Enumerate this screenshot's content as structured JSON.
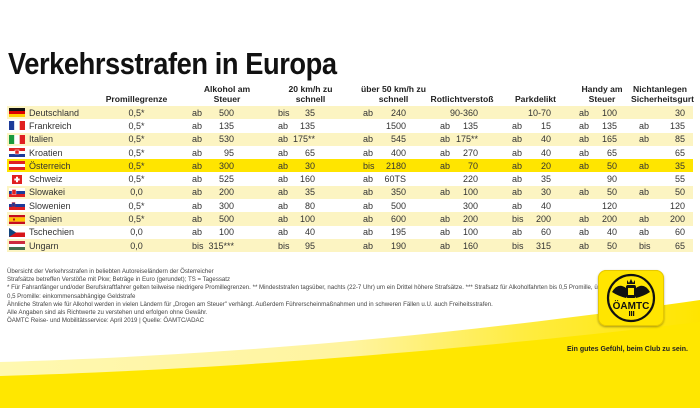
{
  "title": "Verkehrsstrafen in Europa",
  "table": {
    "headers": [
      "",
      "Promillegrenze",
      "Alkohol am Steuer",
      "20 km/h zu schnell",
      "über 50 km/h zu schnell",
      "Rotlichtverstoß",
      "Parkdelikt",
      "Handy am Steuer",
      "Nichtanlegen Sicherheitsgurt"
    ],
    "rows": [
      {
        "country": "Deutschland",
        "flag": "flag-germany",
        "promille": "0,5*",
        "alkohol": {
          "pre": "ab",
          "val": "500"
        },
        "kmh20": {
          "pre": "bis",
          "val": "35"
        },
        "kmh50": {
          "pre": "ab",
          "val": "240"
        },
        "rotlicht": {
          "pre": "",
          "val": "90-360"
        },
        "park": {
          "pre": "",
          "val": "10-70"
        },
        "handy": {
          "pre": "ab",
          "val": "100"
        },
        "gurt": {
          "pre": "",
          "val": "30"
        }
      },
      {
        "country": "Frankreich",
        "flag": "flag-france",
        "promille": "0,5*",
        "alkohol": {
          "pre": "ab",
          "val": "135"
        },
        "kmh20": {
          "pre": "ab",
          "val": "135"
        },
        "kmh50": {
          "pre": "",
          "val": "1500"
        },
        "rotlicht": {
          "pre": "ab",
          "val": "135"
        },
        "park": {
          "pre": "ab",
          "val": "15"
        },
        "handy": {
          "pre": "ab",
          "val": "135"
        },
        "gurt": {
          "pre": "ab",
          "val": "135"
        }
      },
      {
        "country": "Italien",
        "flag": "flag-italy",
        "promille": "0,5*",
        "alkohol": {
          "pre": "ab",
          "val": "530"
        },
        "kmh20": {
          "pre": "ab",
          "val": "175**"
        },
        "kmh50": {
          "pre": "ab",
          "val": "545"
        },
        "rotlicht": {
          "pre": "ab",
          "val": "175**"
        },
        "park": {
          "pre": "ab",
          "val": "40"
        },
        "handy": {
          "pre": "ab",
          "val": "165"
        },
        "gurt": {
          "pre": "ab",
          "val": "85"
        }
      },
      {
        "country": "Kroatien",
        "flag": "flag-croatia",
        "promille": "0,5*",
        "alkohol": {
          "pre": "ab",
          "val": "95"
        },
        "kmh20": {
          "pre": "ab",
          "val": "65"
        },
        "kmh50": {
          "pre": "ab",
          "val": "400"
        },
        "rotlicht": {
          "pre": "ab",
          "val": "270"
        },
        "park": {
          "pre": "ab",
          "val": "40"
        },
        "handy": {
          "pre": "ab",
          "val": "65"
        },
        "gurt": {
          "pre": "",
          "val": "65"
        }
      },
      {
        "country": "Österreich",
        "flag": "flag-austria",
        "promille": "0,5*",
        "alkohol": {
          "pre": "ab",
          "val": "300"
        },
        "kmh20": {
          "pre": "ab",
          "val": "30"
        },
        "kmh50": {
          "pre": "bis",
          "val": "2180"
        },
        "rotlicht": {
          "pre": "ab",
          "val": "70"
        },
        "park": {
          "pre": "ab",
          "val": "20"
        },
        "handy": {
          "pre": "ab",
          "val": "50"
        },
        "gurt": {
          "pre": "ab",
          "val": "35"
        },
        "highlight": true
      },
      {
        "country": "Schweiz",
        "flag": "flag-switzerland",
        "promille": "0,5*",
        "alkohol": {
          "pre": "ab",
          "val": "525"
        },
        "kmh20": {
          "pre": "ab",
          "val": "160"
        },
        "kmh50": {
          "pre": "ab",
          "val": "60TS"
        },
        "rotlicht": {
          "pre": "",
          "val": "220"
        },
        "park": {
          "pre": "ab",
          "val": "35"
        },
        "handy": {
          "pre": "",
          "val": "90"
        },
        "gurt": {
          "pre": "",
          "val": "55"
        }
      },
      {
        "country": "Slowakei",
        "flag": "flag-slovakia",
        "promille": "0,0",
        "alkohol": {
          "pre": "ab",
          "val": "200"
        },
        "kmh20": {
          "pre": "ab",
          "val": "35"
        },
        "kmh50": {
          "pre": "ab",
          "val": "350"
        },
        "rotlicht": {
          "pre": "ab",
          "val": "100"
        },
        "park": {
          "pre": "ab",
          "val": "30"
        },
        "handy": {
          "pre": "ab",
          "val": "50"
        },
        "gurt": {
          "pre": "ab",
          "val": "50"
        }
      },
      {
        "country": "Slowenien",
        "flag": "flag-slovenia",
        "promille": "0,5*",
        "alkohol": {
          "pre": "ab",
          "val": "300"
        },
        "kmh20": {
          "pre": "ab",
          "val": "80"
        },
        "kmh50": {
          "pre": "ab",
          "val": "500"
        },
        "rotlicht": {
          "pre": "",
          "val": "300"
        },
        "park": {
          "pre": "ab",
          "val": "40"
        },
        "handy": {
          "pre": "",
          "val": "120"
        },
        "gurt": {
          "pre": "",
          "val": "120"
        }
      },
      {
        "country": "Spanien",
        "flag": "flag-spain",
        "promille": "0,5*",
        "alkohol": {
          "pre": "ab",
          "val": "500"
        },
        "kmh20": {
          "pre": "ab",
          "val": "100"
        },
        "kmh50": {
          "pre": "ab",
          "val": "600"
        },
        "rotlicht": {
          "pre": "ab",
          "val": "200"
        },
        "park": {
          "pre": "bis",
          "val": "200"
        },
        "handy": {
          "pre": "ab",
          "val": "200"
        },
        "gurt": {
          "pre": "ab",
          "val": "200"
        }
      },
      {
        "country": "Tschechien",
        "flag": "flag-czechia",
        "promille": "0,0",
        "alkohol": {
          "pre": "ab",
          "val": "100"
        },
        "kmh20": {
          "pre": "ab",
          "val": "40"
        },
        "kmh50": {
          "pre": "ab",
          "val": "195"
        },
        "rotlicht": {
          "pre": "ab",
          "val": "100"
        },
        "park": {
          "pre": "ab",
          "val": "60"
        },
        "handy": {
          "pre": "ab",
          "val": "40"
        },
        "gurt": {
          "pre": "ab",
          "val": "60"
        }
      },
      {
        "country": "Ungarn",
        "flag": "flag-hungary",
        "promille": "0,0",
        "alkohol": {
          "pre": "bis",
          "val": "315***"
        },
        "kmh20": {
          "pre": "bis",
          "val": "95"
        },
        "kmh50": {
          "pre": "ab",
          "val": "190"
        },
        "rotlicht": {
          "pre": "ab",
          "val": "160"
        },
        "park": {
          "pre": "bis",
          "val": "315"
        },
        "handy": {
          "pre": "ab",
          "val": "50"
        },
        "gurt": {
          "pre": "bis",
          "val": "65"
        }
      }
    ]
  },
  "notes": [
    "Übersicht der Verkehrsstrafen in beliebten Autoreiseländern der Österreicher",
    "Strafsätze betreffen Verstöße mit Pkw; Beträge in Euro (gerundet); TS = Tagessatz",
    "* Für Fahranfänger und/oder Berufskraftfahrer gelten teilweise niedrigere Promillegrenzen. ** Mindeststrafen tagsüber, nachts (22-7 Uhr) um ein Drittel höhere Strafsätze. *** Strafsatz für Alkoholfahrten bis 0,5 Promille, über",
    "0,5 Promille: einkommensabhängige Geldstrafe",
    "Ähnliche Strafen wie für Alkohol werden in vielen Ländern für „Drogen am Steuer\" verhängt. Außerdem Führerscheinmaßnahmen und in schweren Fällen u.U. auch Freiheitsstrafen.",
    "Alle Angaben sind als Richtwerte zu verstehen und erfolgen ohne Gewähr.",
    "ÖAMTC Reise- und Mobilitätsservice: April 2019  |  Quelle: ÖAMTC/ADAC"
  ],
  "logo": {
    "text": "ÖAMTC",
    "slogan": "Ein gutes Gefühl, beim Club zu sein."
  },
  "colors": {
    "brand_yellow": "#ffe500",
    "stripe": "#fcf4c2"
  }
}
